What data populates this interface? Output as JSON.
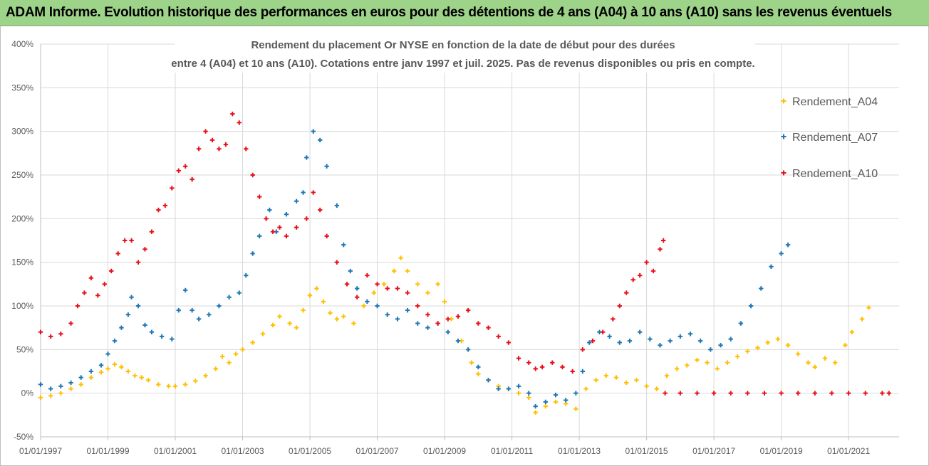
{
  "banner": {
    "title": "ADAM Informe. Evolution historique des performances en euros pour des détentions de 4 ans (A04) à 10 ans (A10) sans les revenus éventuels"
  },
  "chart_data": {
    "type": "scatter",
    "title_lines": [
      "Rendement du placement Or NYSE en fonction de la date de début pour des durées",
      "entre 4 (A04)  et 10 ans (A10). Cotations entre janv 1997 et juil. 2025. Pas de revenus disponibles ou pris en compte."
    ],
    "x_unit": "years since 01/01/1997",
    "x_range": [
      0,
      25.5
    ],
    "x_ticks": [
      {
        "x": 0,
        "label": "01/01/1997"
      },
      {
        "x": 2,
        "label": "01/01/1999"
      },
      {
        "x": 4,
        "label": "01/01/2001"
      },
      {
        "x": 6,
        "label": "01/01/2003"
      },
      {
        "x": 8,
        "label": "01/01/2005"
      },
      {
        "x": 10,
        "label": "01/01/2007"
      },
      {
        "x": 12,
        "label": "01/01/2009"
      },
      {
        "x": 14,
        "label": "01/01/2011"
      },
      {
        "x": 16,
        "label": "01/01/2013"
      },
      {
        "x": 18,
        "label": "01/01/2015"
      },
      {
        "x": 20,
        "label": "01/01/2017"
      },
      {
        "x": 22,
        "label": "01/01/2019"
      },
      {
        "x": 24,
        "label": "01/01/2021"
      }
    ],
    "ylim": [
      -50,
      400
    ],
    "y_ticks": [
      {
        "v": -50,
        "label": "-50%"
      },
      {
        "v": 0,
        "label": "0%"
      },
      {
        "v": 50,
        "label": "50%"
      },
      {
        "v": 100,
        "label": "100%"
      },
      {
        "v": 150,
        "label": "150%"
      },
      {
        "v": 200,
        "label": "200%"
      },
      {
        "v": 250,
        "label": "250%"
      },
      {
        "v": 300,
        "label": "300%"
      },
      {
        "v": 350,
        "label": "350%"
      },
      {
        "v": 400,
        "label": "400%"
      }
    ],
    "grid": true,
    "legend_position": "right",
    "series": [
      {
        "name": "Rendement_A04",
        "color": "#ffc000",
        "points": [
          [
            0.0,
            -5
          ],
          [
            0.3,
            -3
          ],
          [
            0.6,
            0
          ],
          [
            0.9,
            5
          ],
          [
            1.2,
            10
          ],
          [
            1.5,
            18
          ],
          [
            1.8,
            24
          ],
          [
            2.0,
            28
          ],
          [
            2.2,
            33
          ],
          [
            2.4,
            30
          ],
          [
            2.6,
            25
          ],
          [
            2.8,
            20
          ],
          [
            3.0,
            18
          ],
          [
            3.2,
            15
          ],
          [
            3.5,
            10
          ],
          [
            3.8,
            8
          ],
          [
            4.0,
            8
          ],
          [
            4.3,
            10
          ],
          [
            4.6,
            14
          ],
          [
            4.9,
            20
          ],
          [
            5.2,
            28
          ],
          [
            5.4,
            42
          ],
          [
            5.6,
            35
          ],
          [
            5.8,
            45
          ],
          [
            6.0,
            50
          ],
          [
            6.3,
            58
          ],
          [
            6.6,
            68
          ],
          [
            6.9,
            78
          ],
          [
            7.1,
            88
          ],
          [
            7.4,
            80
          ],
          [
            7.6,
            75
          ],
          [
            7.8,
            95
          ],
          [
            8.0,
            112
          ],
          [
            8.2,
            120
          ],
          [
            8.4,
            105
          ],
          [
            8.6,
            92
          ],
          [
            8.8,
            85
          ],
          [
            9.0,
            88
          ],
          [
            9.3,
            80
          ],
          [
            9.6,
            100
          ],
          [
            9.9,
            115
          ],
          [
            10.2,
            125
          ],
          [
            10.5,
            140
          ],
          [
            10.7,
            155
          ],
          [
            10.9,
            140
          ],
          [
            11.2,
            125
          ],
          [
            11.5,
            115
          ],
          [
            11.8,
            125
          ],
          [
            12.0,
            105
          ],
          [
            12.2,
            85
          ],
          [
            12.5,
            60
          ],
          [
            12.8,
            35
          ],
          [
            13.0,
            22
          ],
          [
            13.3,
            15
          ],
          [
            13.6,
            8
          ],
          [
            13.9,
            5
          ],
          [
            14.2,
            0
          ],
          [
            14.5,
            -5
          ],
          [
            14.7,
            -22
          ],
          [
            15.0,
            -15
          ],
          [
            15.3,
            -10
          ],
          [
            15.6,
            -12
          ],
          [
            15.9,
            -18
          ],
          [
            16.2,
            5
          ],
          [
            16.5,
            15
          ],
          [
            16.8,
            20
          ],
          [
            17.1,
            18
          ],
          [
            17.4,
            12
          ],
          [
            17.7,
            15
          ],
          [
            18.0,
            8
          ],
          [
            18.3,
            5
          ],
          [
            18.6,
            20
          ],
          [
            18.9,
            28
          ],
          [
            19.2,
            32
          ],
          [
            19.5,
            38
          ],
          [
            19.8,
            35
          ],
          [
            20.1,
            28
          ],
          [
            20.4,
            35
          ],
          [
            20.7,
            42
          ],
          [
            21.0,
            48
          ],
          [
            21.3,
            52
          ],
          [
            21.6,
            58
          ],
          [
            21.9,
            62
          ],
          [
            22.2,
            55
          ],
          [
            22.5,
            45
          ],
          [
            22.8,
            35
          ],
          [
            23.0,
            30
          ],
          [
            23.3,
            40
          ],
          [
            23.6,
            35
          ],
          [
            23.9,
            55
          ],
          [
            24.1,
            70
          ],
          [
            24.4,
            85
          ],
          [
            24.6,
            98
          ]
        ]
      },
      {
        "name": "Rendement_A07",
        "color": "#1f77b4",
        "points": [
          [
            0.0,
            10
          ],
          [
            0.3,
            5
          ],
          [
            0.6,
            8
          ],
          [
            0.9,
            12
          ],
          [
            1.2,
            18
          ],
          [
            1.5,
            25
          ],
          [
            1.8,
            32
          ],
          [
            2.0,
            45
          ],
          [
            2.2,
            60
          ],
          [
            2.4,
            75
          ],
          [
            2.6,
            90
          ],
          [
            2.7,
            110
          ],
          [
            2.9,
            100
          ],
          [
            3.1,
            78
          ],
          [
            3.3,
            70
          ],
          [
            3.6,
            65
          ],
          [
            3.9,
            62
          ],
          [
            4.1,
            95
          ],
          [
            4.3,
            118
          ],
          [
            4.5,
            95
          ],
          [
            4.7,
            85
          ],
          [
            5.0,
            90
          ],
          [
            5.3,
            100
          ],
          [
            5.6,
            110
          ],
          [
            5.9,
            115
          ],
          [
            6.1,
            135
          ],
          [
            6.3,
            160
          ],
          [
            6.5,
            180
          ],
          [
            6.8,
            210
          ],
          [
            7.0,
            185
          ],
          [
            7.3,
            205
          ],
          [
            7.6,
            220
          ],
          [
            7.8,
            230
          ],
          [
            7.9,
            270
          ],
          [
            8.1,
            300
          ],
          [
            8.3,
            290
          ],
          [
            8.5,
            260
          ],
          [
            8.8,
            215
          ],
          [
            9.0,
            170
          ],
          [
            9.2,
            140
          ],
          [
            9.4,
            120
          ],
          [
            9.7,
            105
          ],
          [
            10.0,
            100
          ],
          [
            10.3,
            90
          ],
          [
            10.6,
            85
          ],
          [
            10.9,
            95
          ],
          [
            11.2,
            80
          ],
          [
            11.5,
            75
          ],
          [
            11.8,
            80
          ],
          [
            12.1,
            70
          ],
          [
            12.4,
            60
          ],
          [
            12.7,
            50
          ],
          [
            13.0,
            30
          ],
          [
            13.3,
            15
          ],
          [
            13.6,
            5
          ],
          [
            13.9,
            5
          ],
          [
            14.2,
            8
          ],
          [
            14.5,
            0
          ],
          [
            14.7,
            -15
          ],
          [
            15.0,
            -10
          ],
          [
            15.3,
            -2
          ],
          [
            15.6,
            -8
          ],
          [
            15.9,
            0
          ],
          [
            16.1,
            25
          ],
          [
            16.3,
            58
          ],
          [
            16.6,
            70
          ],
          [
            16.9,
            65
          ],
          [
            17.2,
            58
          ],
          [
            17.5,
            60
          ],
          [
            17.8,
            70
          ],
          [
            18.1,
            62
          ],
          [
            18.4,
            55
          ],
          [
            18.7,
            60
          ],
          [
            19.0,
            65
          ],
          [
            19.3,
            68
          ],
          [
            19.6,
            60
          ],
          [
            19.9,
            50
          ],
          [
            20.2,
            55
          ],
          [
            20.5,
            62
          ],
          [
            20.8,
            80
          ],
          [
            21.1,
            100
          ],
          [
            21.4,
            120
          ],
          [
            21.7,
            145
          ],
          [
            22.0,
            160
          ],
          [
            22.2,
            170
          ]
        ]
      },
      {
        "name": "Rendement_A10",
        "color": "#e8101a",
        "points": [
          [
            0.0,
            70
          ],
          [
            0.3,
            65
          ],
          [
            0.6,
            68
          ],
          [
            0.9,
            80
          ],
          [
            1.1,
            100
          ],
          [
            1.3,
            115
          ],
          [
            1.5,
            132
          ],
          [
            1.7,
            112
          ],
          [
            1.9,
            125
          ],
          [
            2.1,
            140
          ],
          [
            2.3,
            160
          ],
          [
            2.5,
            175
          ],
          [
            2.7,
            175
          ],
          [
            2.9,
            150
          ],
          [
            3.1,
            165
          ],
          [
            3.3,
            185
          ],
          [
            3.5,
            210
          ],
          [
            3.7,
            215
          ],
          [
            3.9,
            235
          ],
          [
            4.1,
            255
          ],
          [
            4.3,
            260
          ],
          [
            4.5,
            245
          ],
          [
            4.7,
            280
          ],
          [
            4.9,
            300
          ],
          [
            5.1,
            290
          ],
          [
            5.3,
            280
          ],
          [
            5.5,
            285
          ],
          [
            5.7,
            320
          ],
          [
            5.9,
            310
          ],
          [
            6.1,
            280
          ],
          [
            6.3,
            250
          ],
          [
            6.5,
            225
          ],
          [
            6.7,
            200
          ],
          [
            6.9,
            185
          ],
          [
            7.1,
            190
          ],
          [
            7.3,
            180
          ],
          [
            7.6,
            190
          ],
          [
            7.9,
            200
          ],
          [
            8.1,
            230
          ],
          [
            8.3,
            210
          ],
          [
            8.5,
            180
          ],
          [
            8.8,
            150
          ],
          [
            9.1,
            125
          ],
          [
            9.4,
            110
          ],
          [
            9.7,
            135
          ],
          [
            10.0,
            125
          ],
          [
            10.3,
            120
          ],
          [
            10.6,
            120
          ],
          [
            10.9,
            115
          ],
          [
            11.2,
            100
          ],
          [
            11.5,
            90
          ],
          [
            11.8,
            80
          ],
          [
            12.1,
            85
          ],
          [
            12.4,
            88
          ],
          [
            12.7,
            95
          ],
          [
            13.0,
            80
          ],
          [
            13.3,
            75
          ],
          [
            13.6,
            65
          ],
          [
            13.9,
            58
          ],
          [
            14.2,
            40
          ],
          [
            14.5,
            35
          ],
          [
            14.7,
            28
          ],
          [
            14.9,
            30
          ],
          [
            15.2,
            35
          ],
          [
            15.5,
            30
          ],
          [
            15.8,
            25
          ],
          [
            16.1,
            50
          ],
          [
            16.4,
            60
          ],
          [
            16.7,
            70
          ],
          [
            17.0,
            85
          ],
          [
            17.2,
            100
          ],
          [
            17.4,
            115
          ],
          [
            17.6,
            130
          ],
          [
            17.8,
            135
          ],
          [
            18.0,
            150
          ],
          [
            18.2,
            140
          ],
          [
            18.4,
            165
          ],
          [
            18.5,
            175
          ],
          [
            18.55,
            0
          ],
          [
            19.0,
            0
          ],
          [
            19.5,
            0
          ],
          [
            20.0,
            0
          ],
          [
            20.5,
            0
          ],
          [
            21.0,
            0
          ],
          [
            21.5,
            0
          ],
          [
            22.0,
            0
          ],
          [
            22.5,
            0
          ],
          [
            23.0,
            0
          ],
          [
            23.5,
            0
          ],
          [
            24.0,
            0
          ],
          [
            24.5,
            0
          ],
          [
            25.0,
            0
          ],
          [
            25.2,
            0
          ]
        ]
      }
    ]
  }
}
